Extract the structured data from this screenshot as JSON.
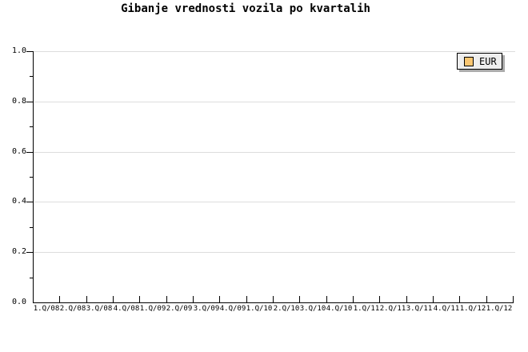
{
  "chart": {
    "legend": {
      "items": [
        {
          "label": "EUR",
          "color": "#f9c672"
        }
      ]
    }
  },
  "chart_data": {
    "type": "line",
    "title": "Gibanje vrednosti vozila po kvartalih",
    "categories": [
      "1.Q/08",
      "2.Q/08",
      "3.Q/08",
      "4.Q/08",
      "1.Q/09",
      "2.Q/09",
      "3.Q/09",
      "4.Q/09",
      "1.Q/10",
      "2.Q/10",
      "3.Q/10",
      "4.Q/10",
      "1.Q/11",
      "2.Q/11",
      "3.Q/11",
      "4.Q/11",
      "1.Q/12",
      "1.Q/12"
    ],
    "series": [
      {
        "name": "EUR",
        "color": "#f9c672",
        "values": []
      }
    ],
    "xlabel": "",
    "ylabel": "",
    "ylim": [
      0.0,
      1.0
    ],
    "y_ticks": [
      {
        "label": "0.0",
        "value": 0.0
      },
      {
        "label": "0.2",
        "value": 0.2
      },
      {
        "label": "0.4",
        "value": 0.4
      },
      {
        "label": "0.6",
        "value": 0.6
      },
      {
        "label": "0.8",
        "value": 0.8
      },
      {
        "label": "1.0",
        "value": 1.0
      }
    ],
    "y_minor_ticks": [
      0.1,
      0.3,
      0.5,
      0.7,
      0.9
    ],
    "grid": "horizontal-major",
    "legend_position": "top-right"
  },
  "colors": {
    "background": "#ffffff",
    "axis": "#000000",
    "grid": "#dddddd",
    "legend_bg": "#eeeeee",
    "legend_shadow": "#aaaaaa",
    "series_eur": "#f9c672"
  }
}
